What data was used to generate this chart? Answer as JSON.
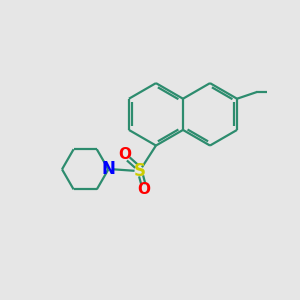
{
  "background_color": "#e6e6e6",
  "bond_color": "#2d8c6e",
  "n_color": "#0000ff",
  "s_color": "#cccc00",
  "o_color": "#ff0000",
  "line_width": 1.6,
  "figsize": [
    3.0,
    3.0
  ],
  "dpi": 100,
  "xlim": [
    0,
    10
  ],
  "ylim": [
    0,
    10
  ]
}
